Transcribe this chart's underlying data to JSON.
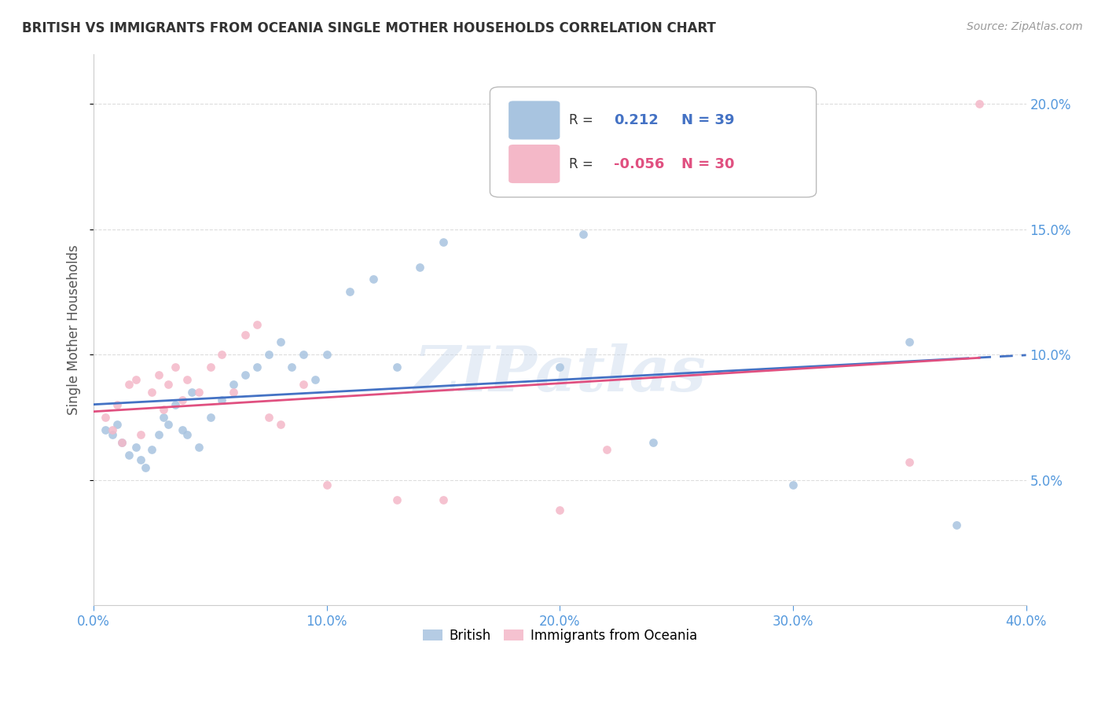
{
  "title": "BRITISH VS IMMIGRANTS FROM OCEANIA SINGLE MOTHER HOUSEHOLDS CORRELATION CHART",
  "source": "Source: ZipAtlas.com",
  "ylabel": "Single Mother Households",
  "xmin": 0.0,
  "xmax": 0.4,
  "ymin": 0.0,
  "ymax": 0.22,
  "yticks": [
    0.05,
    0.1,
    0.15,
    0.2
  ],
  "xticks": [
    0.0,
    0.1,
    0.2,
    0.3,
    0.4
  ],
  "legend_british_R": "0.212",
  "legend_british_N": "39",
  "legend_oceania_R": "-0.056",
  "legend_oceania_N": "30",
  "british_color": "#A8C4E0",
  "oceania_color": "#F4B8C8",
  "trendline_british_color": "#4472C4",
  "trendline_oceania_color": "#E05080",
  "watermark_text": "ZIPatlas",
  "british_x": [
    0.005,
    0.008,
    0.01,
    0.012,
    0.015,
    0.018,
    0.02,
    0.022,
    0.025,
    0.028,
    0.03,
    0.032,
    0.035,
    0.038,
    0.04,
    0.042,
    0.045,
    0.05,
    0.055,
    0.06,
    0.065,
    0.07,
    0.075,
    0.08,
    0.085,
    0.09,
    0.095,
    0.1,
    0.11,
    0.12,
    0.13,
    0.14,
    0.15,
    0.2,
    0.21,
    0.24,
    0.3,
    0.35,
    0.37
  ],
  "british_y": [
    0.07,
    0.068,
    0.072,
    0.065,
    0.06,
    0.063,
    0.058,
    0.055,
    0.062,
    0.068,
    0.075,
    0.072,
    0.08,
    0.07,
    0.068,
    0.085,
    0.063,
    0.075,
    0.082,
    0.088,
    0.092,
    0.095,
    0.1,
    0.105,
    0.095,
    0.1,
    0.09,
    0.1,
    0.125,
    0.13,
    0.095,
    0.135,
    0.145,
    0.095,
    0.148,
    0.065,
    0.048,
    0.105,
    0.032
  ],
  "oceania_x": [
    0.005,
    0.008,
    0.01,
    0.012,
    0.015,
    0.018,
    0.02,
    0.025,
    0.028,
    0.03,
    0.032,
    0.035,
    0.038,
    0.04,
    0.045,
    0.05,
    0.055,
    0.06,
    0.065,
    0.07,
    0.075,
    0.08,
    0.09,
    0.1,
    0.13,
    0.15,
    0.2,
    0.22,
    0.35,
    0.38
  ],
  "oceania_y": [
    0.075,
    0.07,
    0.08,
    0.065,
    0.088,
    0.09,
    0.068,
    0.085,
    0.092,
    0.078,
    0.088,
    0.095,
    0.082,
    0.09,
    0.085,
    0.095,
    0.1,
    0.085,
    0.108,
    0.112,
    0.075,
    0.072,
    0.088,
    0.048,
    0.042,
    0.042,
    0.038,
    0.062,
    0.057,
    0.2
  ],
  "british_marker_size": 60,
  "oceania_marker_size": 60,
  "background_color": "#FFFFFF",
  "grid_color": "#CCCCCC"
}
